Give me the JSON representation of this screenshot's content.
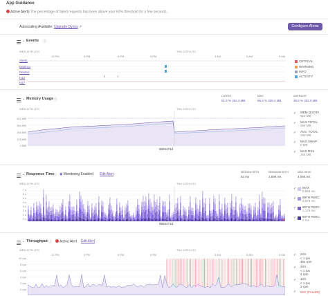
{
  "header": {
    "title": "App Guidance"
  },
  "alert_banner": {
    "label": "Active Alerts",
    "message": "The percentage of failed requests has been above your 60% threshold for a few seconds."
  },
  "autoscale": {
    "label": "Autoscaling Available:",
    "link": "Upgrade Dynos",
    "button": "Configure Alerts"
  },
  "events": {
    "title": "Events",
    "time_labels": [
      "WED 11TH UTC",
      "12 PM",
      "3 PM",
      "6 PM",
      "9 PM",
      "THU 12TH UTC",
      "3 AM",
      "6 AM",
      "9 AM"
    ],
    "rows": [
      "Alerts",
      "Deploys",
      "Restart",
      "H12",
      "H27"
    ],
    "legend": [
      {
        "label": "CRITICAL",
        "color": "#e05b5b"
      },
      {
        "label": "WARNING",
        "color": "#e9a24a"
      },
      {
        "label": "INFO",
        "color": "#9aa1b1"
      },
      {
        "label": "ACTIVITY",
        "color": "#4aa7d9"
      }
    ]
  },
  "memory": {
    "title": "Memory Usage",
    "stats": [
      {
        "label": "LATEST",
        "values": "51.6 %   264.3 MB"
      },
      {
        "label": "MAX",
        "values": "66.3 %   339.4 MB"
      },
      {
        "label": "AVERAGE",
        "values": "39.6 %   202.9 MB"
      }
    ],
    "yticks": [
      "512 MB",
      "384 MB",
      "256 MB",
      "128 MB",
      "0 MB"
    ],
    "commit": "8594471d",
    "legend": [
      {
        "label": "MEM QUOTA",
        "value": "512 MB"
      },
      {
        "label": "MAX TOTAL",
        "value": "264 MB"
      },
      {
        "label": "AVG. TOTAL",
        "value": "256 MB"
      },
      {
        "label": "MAX SWAP",
        "value": "0 MB"
      },
      {
        "label": "MAX RSS",
        "value": "264 MB"
      }
    ]
  },
  "response": {
    "title": "Response Time",
    "monitoring": "Monitoring Enabled",
    "edit": "Edit Alert",
    "stats": [
      {
        "label": "MEDIAN 95TH",
        "value": "53 ms"
      },
      {
        "label": "MINIMUM 95TH",
        "value": "1,599 ms"
      },
      {
        "label": "MAX 95TH",
        "value": "4,095 ms"
      }
    ],
    "yticks": [
      "7 s",
      "6 s",
      "5 s",
      "4 s",
      "3 s",
      "2 s",
      "1 s",
      "0 s"
    ],
    "commit": "8594471d",
    "legend": [
      {
        "label": "MAX",
        "value": "5,583 ms"
      },
      {
        "label": "99TH PERC.",
        "value": "3,873 ms"
      },
      {
        "label": "95TH PERC.",
        "value": "2,175 ms"
      },
      {
        "label": "50TH PERC.",
        "value": "2 ms"
      }
    ]
  },
  "throughput": {
    "title": "Throughput",
    "alert": "Active Alert",
    "edit": "Edit Alert",
    "yticks": [
      "10 rps",
      "8 rps",
      "6 rps",
      "4 rps",
      "2 rps",
      "0 rps"
    ],
    "legend": [
      {
        "label": "2XX",
        "value": "< 1 rps\n461 rpm"
      },
      {
        "label": "3XX",
        "value": "< 1 rps\n4 rpm"
      },
      {
        "label": "4XX",
        "value": "< 1 rps\n3 rpm"
      },
      {
        "label": "5XX (FAILED)",
        "value": ""
      }
    ]
  }
}
